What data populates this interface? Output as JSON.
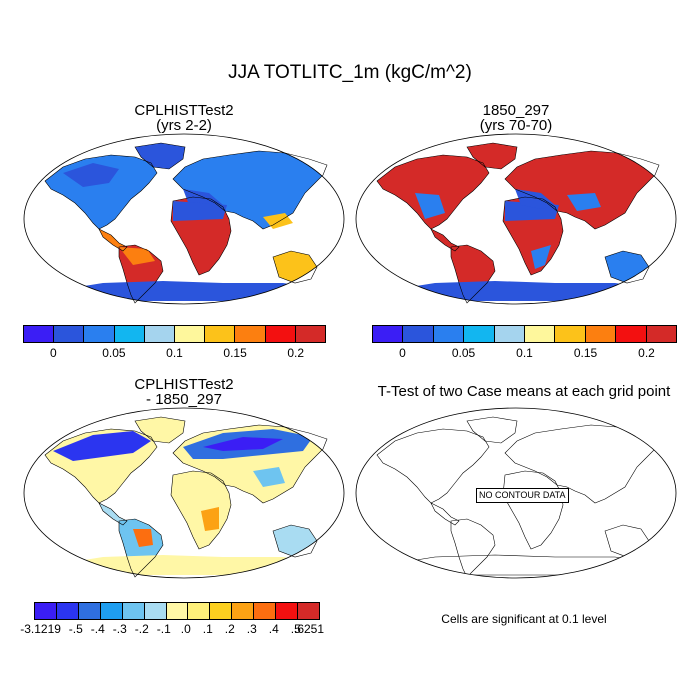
{
  "title": "JJA TOTLITC_1m (kgC/m^2)",
  "panels": {
    "case1": {
      "line1": "CPLHISTTest2",
      "line2": "(yrs 2-2)"
    },
    "case2": {
      "line1": "1850_297",
      "line2": "(yrs 70-70)"
    },
    "diff": {
      "line1": "CPLHISTTest2",
      "line2": "- 1850_297"
    },
    "ttest": {
      "line1": "T-Test of two Case means at each grid point",
      "no_data": "NO CONTOUR DATA",
      "significance": "Cells are significant at 0.1 level"
    }
  },
  "colorbar_abs": {
    "colors": [
      "#3b1ef5",
      "#2b55dc",
      "#2a7fef",
      "#12b6f0",
      "#a5d4ee",
      "#fef79c",
      "#fcc21a",
      "#fc7f10",
      "#f31010",
      "#d42a28"
    ],
    "tick_labels": [
      "0",
      "0.05",
      "0.1",
      "0.15",
      "0.2"
    ]
  },
  "colorbar_diff": {
    "colors": [
      "#3b1ef5",
      "#2b35f0",
      "#2f6fe0",
      "#1f9ef0",
      "#6ec4f0",
      "#a9dcf2",
      "#fff7a6",
      "#fef07a",
      "#fcd020",
      "#fca214",
      "#fc6e10",
      "#f31010",
      "#d42a28"
    ],
    "tick_labels": [
      "-3.1219",
      "-.5",
      "-.4",
      "-.3",
      "-.2",
      "-.1",
      ".0",
      ".1",
      ".2",
      ".3",
      ".4",
      ".5",
      ".6251"
    ]
  }
}
